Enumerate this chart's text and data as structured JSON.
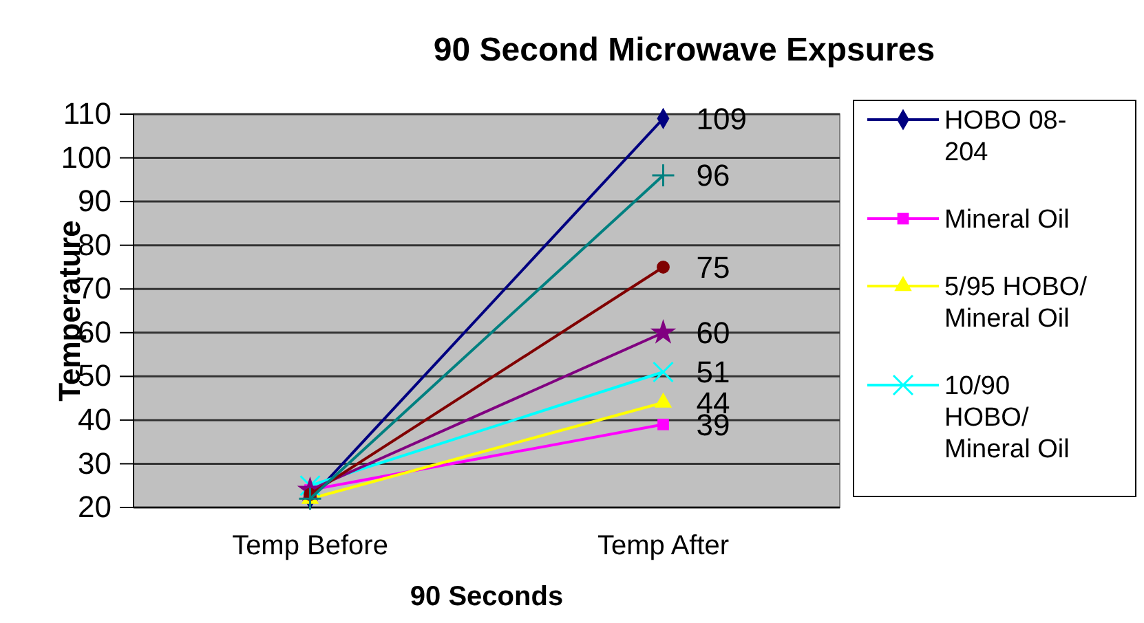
{
  "chart_data": {
    "type": "line",
    "title": "90 Second Microwave Expsures",
    "xlabel": "90 Seconds",
    "ylabel": "Temperature",
    "categories": [
      "Temp Before",
      "Temp After"
    ],
    "series": [
      {
        "name": "HOBO 08-204",
        "color": "#000080",
        "marker": "diamond",
        "values": [
          22,
          109
        ],
        "value_labels": [
          null,
          "109"
        ]
      },
      {
        "name": "Mineral Oil",
        "color": "#ff00ff",
        "marker": "square",
        "values": [
          24,
          39
        ],
        "value_labels": [
          null,
          "39"
        ]
      },
      {
        "name": "5/95 HOBO/Mineral Oil",
        "color": "#ffff00",
        "marker": "triangle",
        "values": [
          22,
          44
        ],
        "value_labels": [
          null,
          "44"
        ]
      },
      {
        "name": "10/90 HOBO/Mineral Oil",
        "color": "#00ffff",
        "marker": "cross",
        "values": [
          25,
          51
        ],
        "value_labels": [
          null,
          "51"
        ]
      },
      {
        "color": "#800080",
        "marker": "star",
        "values": [
          24,
          60
        ],
        "value_labels": [
          null,
          "60"
        ]
      },
      {
        "color": "#800000",
        "marker": "circle",
        "values": [
          23,
          75
        ],
        "value_labels": [
          null,
          "75"
        ]
      },
      {
        "color": "#008080",
        "marker": "plus",
        "values": [
          22,
          96
        ],
        "value_labels": [
          null,
          "96"
        ]
      }
    ],
    "ylim": [
      20,
      110
    ],
    "yticks": [
      20,
      30,
      40,
      50,
      60,
      70,
      80,
      90,
      100,
      110
    ],
    "grid": "y",
    "legend": "right"
  }
}
